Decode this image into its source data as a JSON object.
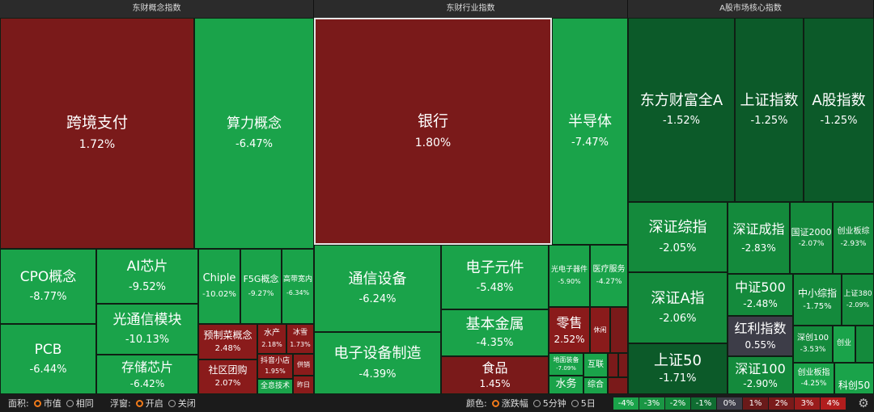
{
  "sections": {
    "concept_title": "东财概念指数",
    "industry_title": "东财行业指数",
    "market_title": "A股市场核心指数"
  },
  "concept_tiles": [
    {
      "name": "跨境支付",
      "pct": "1.72%"
    },
    {
      "name": "算力概念",
      "pct": "-6.47%"
    },
    {
      "name": "CPO概念",
      "pct": "-8.77%"
    },
    {
      "name": "AI芯片",
      "pct": "-9.52%"
    },
    {
      "name": "Chiple",
      "pct": "-10.02%"
    },
    {
      "name": "F5G概念",
      "pct": "-9.27%"
    },
    {
      "name": "高带宽内",
      "pct": "-6.34%"
    },
    {
      "name": "光通信模块",
      "pct": "-10.13%"
    },
    {
      "name": "PCB",
      "pct": "-6.44%"
    },
    {
      "name": "存储芯片",
      "pct": "-6.42%"
    },
    {
      "name": "预制菜概念",
      "pct": "2.48%"
    },
    {
      "name": "水产",
      "pct": "2.18%"
    },
    {
      "name": "冰雪",
      "pct": "1.73%"
    },
    {
      "name": "社区团购",
      "pct": "2.07%"
    },
    {
      "name": "抖音小店",
      "pct": "1.95%"
    },
    {
      "name": "供销",
      "pct": ""
    },
    {
      "name": "全息技术",
      "pct": ""
    },
    {
      "name": "昨日",
      "pct": ""
    }
  ],
  "industry_tiles": [
    {
      "name": "银行",
      "pct": "1.80%"
    },
    {
      "name": "半导体",
      "pct": "-7.47%"
    },
    {
      "name": "通信设备",
      "pct": "-6.24%"
    },
    {
      "name": "电子元件",
      "pct": "-5.48%"
    },
    {
      "name": "光电子器件",
      "pct": "-5.90%"
    },
    {
      "name": "医疗服务",
      "pct": "-4.27%"
    },
    {
      "name": "基本金属",
      "pct": "-4.35%"
    },
    {
      "name": "零售",
      "pct": "2.52%"
    },
    {
      "name": "休闲",
      "pct": ""
    },
    {
      "name": "电子设备制造",
      "pct": "-4.39%"
    },
    {
      "name": "食品",
      "pct": "1.45%"
    },
    {
      "name": "地面装备",
      "pct": "-7.09%"
    },
    {
      "name": "互联",
      "pct": ""
    },
    {
      "name": "水务",
      "pct": ""
    },
    {
      "name": "综合",
      "pct": ""
    }
  ],
  "market_tiles": [
    {
      "name": "东方财富全A",
      "pct": "-1.52%"
    },
    {
      "name": "上证指数",
      "pct": "-1.25%"
    },
    {
      "name": "A股指数",
      "pct": "-1.25%"
    },
    {
      "name": "深证综指",
      "pct": "-2.05%"
    },
    {
      "name": "深证成指",
      "pct": "-2.83%"
    },
    {
      "name": "国证2000",
      "pct": "-2.07%"
    },
    {
      "name": "创业板综",
      "pct": "-2.93%"
    },
    {
      "name": "深证A指",
      "pct": "-2.06%"
    },
    {
      "name": "中证500",
      "pct": "-2.48%"
    },
    {
      "name": "中小综指",
      "pct": "-1.75%"
    },
    {
      "name": "上证380",
      "pct": "-2.09%"
    },
    {
      "name": "红利指数",
      "pct": "0.55%"
    },
    {
      "name": "深创100",
      "pct": "-3.53%"
    },
    {
      "name": "创业",
      "pct": ""
    },
    {
      "name": "上证50",
      "pct": "-1.71%"
    },
    {
      "name": "深证100",
      "pct": "-2.90%"
    },
    {
      "name": "创业板指",
      "pct": "-4.25%"
    },
    {
      "name": "科创50",
      "pct": ""
    }
  ],
  "footer": {
    "area_label": "面积:",
    "area_opt1": "市值",
    "area_opt2": "相同",
    "float_label": "浮窗:",
    "float_opt1": "开启",
    "float_opt2": "关闭",
    "color_label": "颜色:",
    "color_opt1": "涨跌幅",
    "color_opt2": "5分钟",
    "color_opt3": "5日",
    "legend": [
      "-4%",
      "-3%",
      "-2%",
      "-1%",
      "0%",
      "1%",
      "2%",
      "3%",
      "4%"
    ]
  },
  "colors": {
    "red_dark": "#7a1a1a",
    "red": "#8a1b1b",
    "green_bright": "#1aa34a",
    "green_mid": "#148a3c",
    "green_dark": "#0f6d31",
    "green_darker": "#0c5a29",
    "neutral": "#3d3d48",
    "accent": "#f07a1a"
  },
  "icons": {
    "settings": "gear-icon"
  }
}
